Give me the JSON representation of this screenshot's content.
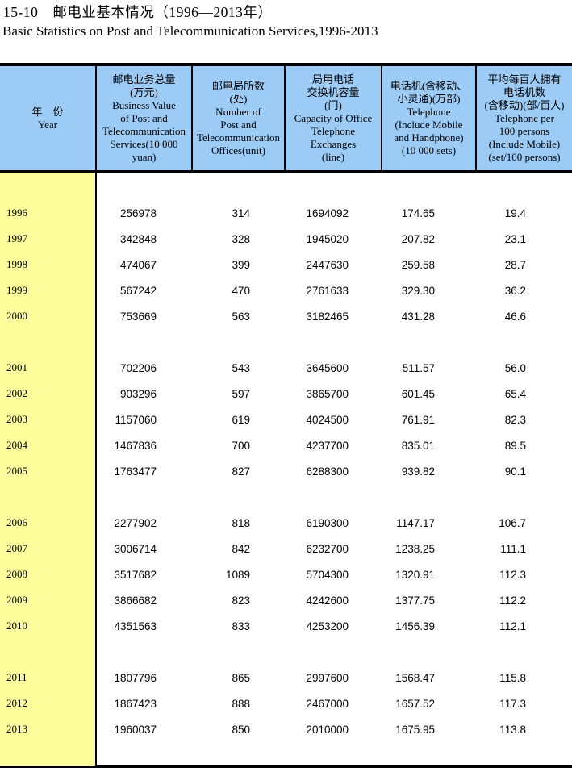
{
  "title": {
    "zh": "15-10　邮电业基本情况（1996—2013年）",
    "en": "Basic Statistics on Post and Telecommunication Services,1996-2013"
  },
  "table": {
    "colors": {
      "header_bg": "#9CCBF6",
      "year_col_bg": "#FEFE9C",
      "border": "#000000"
    },
    "header": {
      "columns": [
        {
          "name": "year",
          "lines": [
            "年　份",
            "Year"
          ]
        },
        {
          "name": "business-value",
          "lines": [
            "邮电业务总量",
            "(万元)",
            "Business Value",
            "of Post and",
            "Telecommunication",
            "Services(10 000",
            "yuan)"
          ]
        },
        {
          "name": "office-number",
          "lines": [
            "邮电局所数",
            "(处)",
            "Number of",
            "Post and",
            "Telecommunication",
            "Offices(unit)"
          ]
        },
        {
          "name": "exchange-capacity",
          "lines": [
            "局用电话",
            "交换机容量",
            "(门)",
            "Capacity of Office",
            "Telephone",
            "Exchanges",
            "(line)"
          ]
        },
        {
          "name": "telephone-sets",
          "lines": [
            "电话机(含移动、",
            "小灵通)(万部)",
            "Telephone",
            "(Include Mobile",
            "and Handphone)",
            "(10 000 sets)"
          ]
        },
        {
          "name": "telephone-per-100",
          "lines": [
            "平均每百人拥有",
            "电话机数",
            "(含移动)(部/百人)",
            "Telephone per",
            "100 persons",
            "(Include Mobile)",
            "(set/100 persons)"
          ]
        }
      ]
    },
    "groups": [
      {
        "rows": [
          {
            "year": "1996",
            "values": [
              "256978",
              "314",
              "1694092",
              "174.65",
              "19.4"
            ]
          },
          {
            "year": "1997",
            "values": [
              "342848",
              "328",
              "1945020",
              "207.82",
              "23.1"
            ]
          },
          {
            "year": "1998",
            "values": [
              "474067",
              "399",
              "2447630",
              "259.58",
              "28.7"
            ]
          },
          {
            "year": "1999",
            "values": [
              "567242",
              "470",
              "2761633",
              "329.30",
              "36.2"
            ]
          },
          {
            "year": "2000",
            "values": [
              "753669",
              "563",
              "3182465",
              "431.28",
              "46.6"
            ]
          }
        ]
      },
      {
        "rows": [
          {
            "year": "2001",
            "values": [
              "702206",
              "543",
              "3645600",
              "511.57",
              "56.0"
            ]
          },
          {
            "year": "2002",
            "values": [
              "903296",
              "597",
              "3865700",
              "601.45",
              "65.4"
            ]
          },
          {
            "year": "2003",
            "values": [
              "1157060",
              "619",
              "4024500",
              "761.91",
              "82.3"
            ]
          },
          {
            "year": "2004",
            "values": [
              "1467836",
              "700",
              "4237700",
              "835.01",
              "89.5"
            ]
          },
          {
            "year": "2005",
            "values": [
              "1763477",
              "827",
              "6288300",
              "939.82",
              "90.1"
            ]
          }
        ]
      },
      {
        "rows": [
          {
            "year": "2006",
            "values": [
              "2277902",
              "818",
              "6190300",
              "1147.17",
              "106.7"
            ]
          },
          {
            "year": "2007",
            "values": [
              "3006714",
              "842",
              "6232700",
              "1238.25",
              "111.1"
            ]
          },
          {
            "year": "2008",
            "values": [
              "3517682",
              "1089",
              "5704300",
              "1320.91",
              "112.3"
            ]
          },
          {
            "year": "2009",
            "values": [
              "3866682",
              "823",
              "4242600",
              "1377.75",
              "112.2"
            ]
          },
          {
            "year": "2010",
            "values": [
              "4351563",
              "833",
              "4253200",
              "1456.39",
              "112.1"
            ]
          }
        ]
      },
      {
        "rows": [
          {
            "year": "2011",
            "values": [
              "1807796",
              "865",
              "2997600",
              "1568.47",
              "115.8"
            ]
          },
          {
            "year": "2012",
            "values": [
              "1867423",
              "888",
              "2467000",
              "1657.52",
              "117.3"
            ]
          },
          {
            "year": "2013",
            "values": [
              "1960037",
              "850",
              "2010000",
              "1675.95",
              "113.8"
            ]
          }
        ]
      }
    ]
  }
}
